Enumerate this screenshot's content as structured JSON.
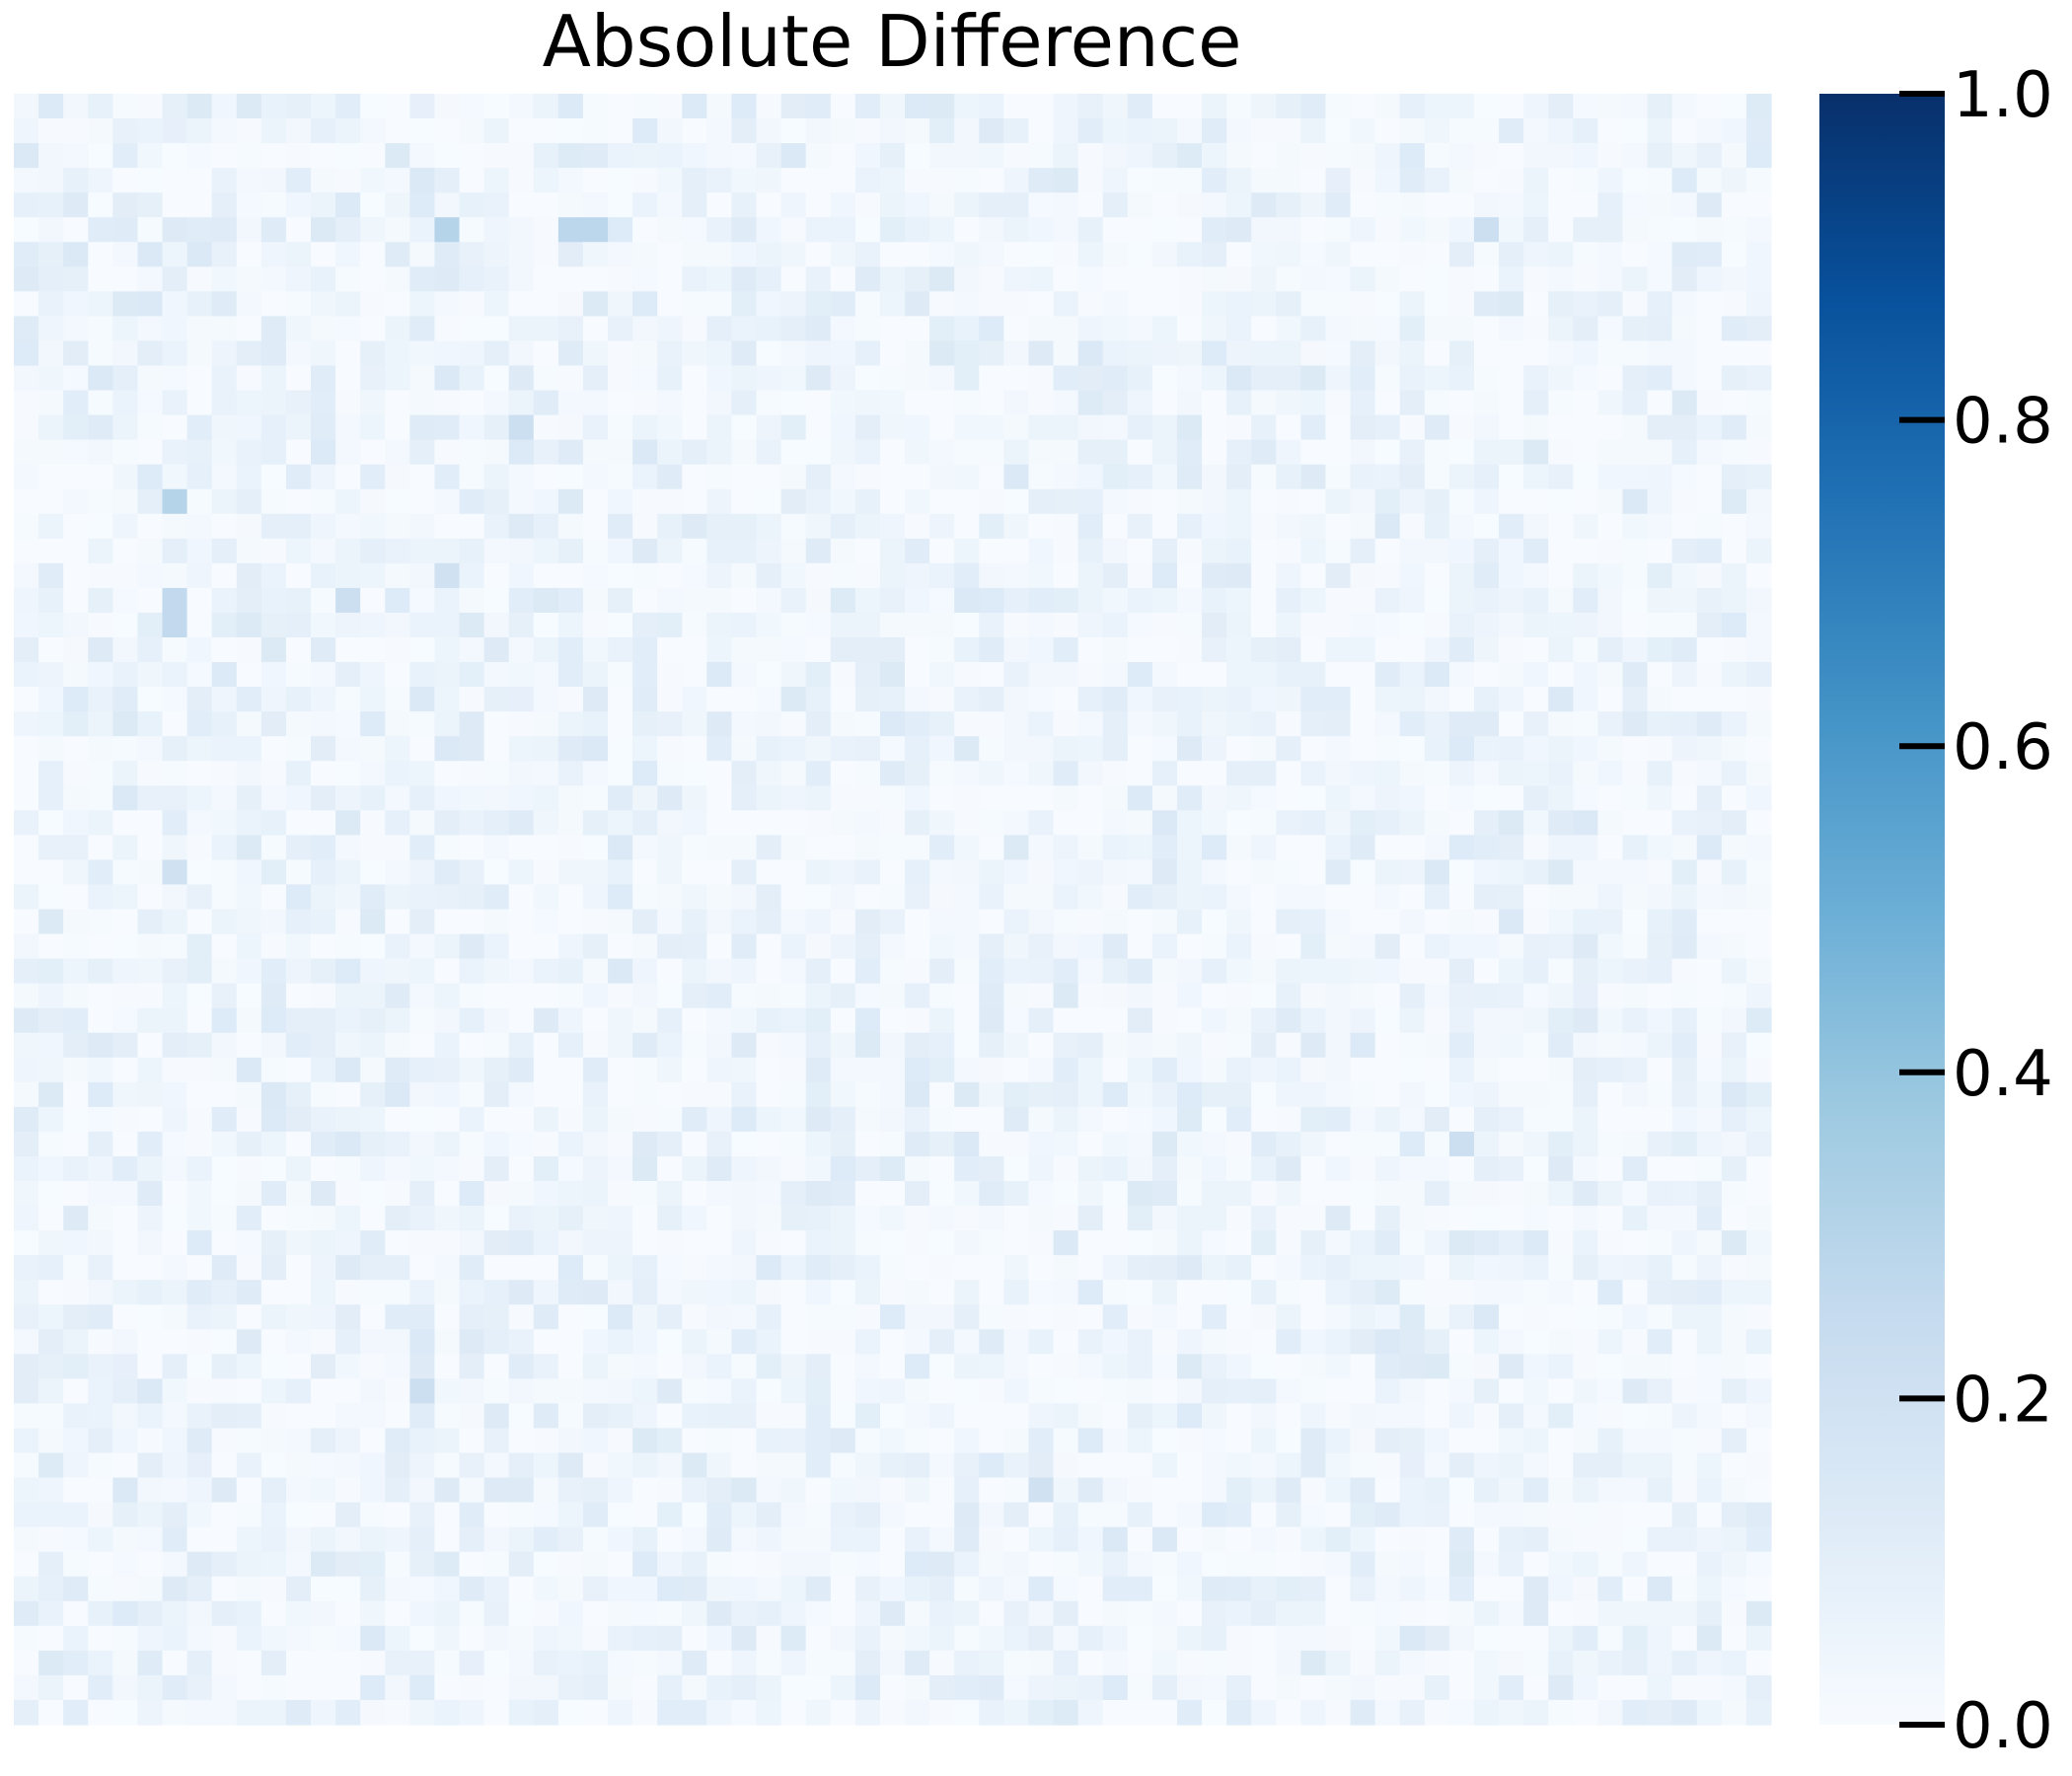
{
  "chart_data": {
    "type": "heatmap",
    "title": "Absolute Difference",
    "rows": 66,
    "cols": 71,
    "value_range": [
      0.0,
      1.0
    ],
    "colormap": "Blues",
    "colormap_stops": [
      "#f7fbff",
      "#deebf7",
      "#c6dbef",
      "#9ecae1",
      "#6baed6",
      "#4292c6",
      "#2171b5",
      "#08519c",
      "#08306b"
    ],
    "colorbar": {
      "ticks": [
        0.0,
        0.2,
        0.4,
        0.6,
        0.8,
        1.0
      ],
      "tick_labels": [
        "0.0",
        "0.2",
        "0.4",
        "0.6",
        "0.8",
        "1.0"
      ]
    },
    "value_distribution": {
      "typical_range": [
        0.0,
        0.1
      ],
      "maximum_approx": 0.3
    },
    "strong_cells": [
      {
        "row": 5,
        "col": 17,
        "value": 0.3
      },
      {
        "row": 5,
        "col": 22,
        "value": 0.28
      },
      {
        "row": 5,
        "col": 23,
        "value": 0.28
      },
      {
        "row": 16,
        "col": 6,
        "value": 0.3
      },
      {
        "row": 20,
        "col": 6,
        "value": 0.26
      },
      {
        "row": 21,
        "col": 6,
        "value": 0.26
      },
      {
        "row": 20,
        "col": 13,
        "value": 0.22
      },
      {
        "row": 31,
        "col": 6,
        "value": 0.2
      },
      {
        "row": 42,
        "col": 58,
        "value": 0.22
      },
      {
        "row": 52,
        "col": 16,
        "value": 0.22
      },
      {
        "row": 56,
        "col": 41,
        "value": 0.2
      },
      {
        "row": 5,
        "col": 59,
        "value": 0.22
      },
      {
        "row": 13,
        "col": 20,
        "value": 0.22
      },
      {
        "row": 19,
        "col": 17,
        "value": 0.2
      }
    ]
  }
}
